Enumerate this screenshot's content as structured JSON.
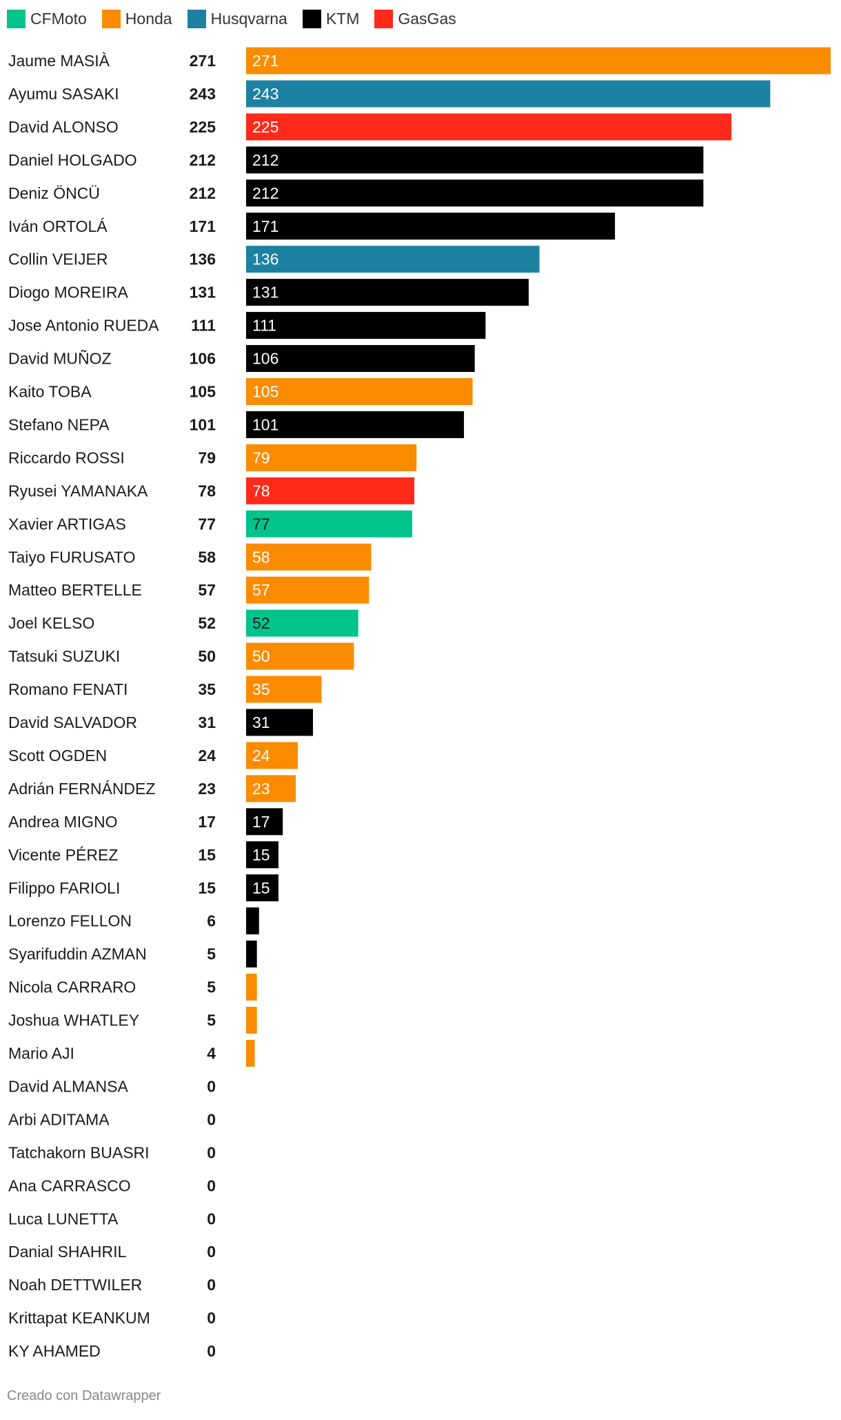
{
  "legend": [
    {
      "name": "CFMoto",
      "color": "#00c48c"
    },
    {
      "name": "Honda",
      "color": "#fb8c00"
    },
    {
      "name": "Husqvarna",
      "color": "#1d81a2"
    },
    {
      "name": "KTM",
      "color": "#000000"
    },
    {
      "name": "GasGas",
      "color": "#ff2a1a"
    }
  ],
  "chart_data": {
    "type": "bar",
    "orientation": "horizontal",
    "grid": false,
    "legend_position": "top-left",
    "xlim": [
      0,
      271
    ],
    "categories": [
      "Jaume MASIÀ",
      "Ayumu SASAKI",
      "David ALONSO",
      "Daniel HOLGADO",
      "Deniz ÖNCÜ",
      "Iván ORTOLÁ",
      "Collin VEIJER",
      "Diogo MOREIRA",
      "Jose Antonio RUEDA",
      "David MUÑOZ",
      "Kaito TOBA",
      "Stefano NEPA",
      "Riccardo ROSSI",
      "Ryusei YAMANAKA",
      "Xavier ARTIGAS",
      "Taiyo FURUSATO",
      "Matteo BERTELLE",
      "Joel KELSO",
      "Tatsuki SUZUKI",
      "Romano FENATI",
      "David SALVADOR",
      "Scott OGDEN",
      "Adrián FERNÁNDEZ",
      "Andrea MIGNO",
      "Vicente PÉREZ",
      "Filippo FARIOLI",
      "Lorenzo FELLON",
      "Syarifuddin AZMAN",
      "Nicola CARRARO",
      "Joshua WHATLEY",
      "Mario AJI",
      "David ALMANSA",
      "Arbi ADITAMA",
      "Tatchakorn BUASRI",
      "Ana CARRASCO",
      "Luca LUNETTA",
      "Danial SHAHRIL",
      "Noah DETTWILER",
      "Krittapat KEANKUM",
      "KY AHAMED"
    ],
    "values": [
      271,
      243,
      225,
      212,
      212,
      171,
      136,
      131,
      111,
      106,
      105,
      101,
      79,
      78,
      77,
      58,
      57,
      52,
      50,
      35,
      31,
      24,
      23,
      17,
      15,
      15,
      6,
      5,
      5,
      5,
      4,
      0,
      0,
      0,
      0,
      0,
      0,
      0,
      0,
      0
    ],
    "manufacturers": [
      "Honda",
      "Husqvarna",
      "GasGas",
      "KTM",
      "KTM",
      "KTM",
      "Husqvarna",
      "KTM",
      "KTM",
      "KTM",
      "Honda",
      "KTM",
      "Honda",
      "GasGas",
      "CFMoto",
      "Honda",
      "Honda",
      "CFMoto",
      "Honda",
      "Honda",
      "KTM",
      "Honda",
      "Honda",
      "KTM",
      "KTM",
      "KTM",
      "KTM",
      "KTM",
      "Honda",
      "Honda",
      "Honda",
      "",
      "",
      "",
      "",
      "",
      "",
      "",
      "",
      ""
    ]
  },
  "footer": "Creado con Datawrapper"
}
